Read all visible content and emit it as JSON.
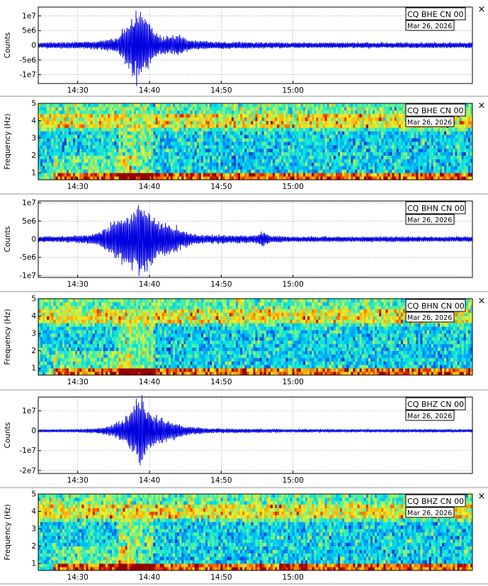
{
  "panels": [
    {
      "kind": "wave",
      "ylabel": "Counts",
      "ticks": [
        "1e7",
        "5e6",
        "0",
        "-5e6",
        "-1e7"
      ],
      "tick_values": [
        10000000,
        5000000,
        0,
        -5000000,
        -10000000
      ],
      "ylim": [
        -13000000,
        13000000
      ],
      "station": "CQ BHE CN 00",
      "date": "Mar 26, 2026"
    },
    {
      "kind": "spec",
      "ylabel": "Frequency (Hz)",
      "ticks": [
        "5",
        "4",
        "3",
        "2",
        "1"
      ],
      "tick_values": [
        5,
        4,
        3,
        2,
        1
      ],
      "ylim": [
        0.6,
        5
      ],
      "station": "CQ BHE CN 00",
      "date": "Mar 26, 2026"
    },
    {
      "kind": "wave",
      "ylabel": "Counts",
      "ticks": [
        "1e7",
        "5e6",
        "0",
        "-5e6",
        "-1e7"
      ],
      "tick_values": [
        10000000,
        5000000,
        0,
        -5000000,
        -10000000
      ],
      "ylim": [
        -10500000,
        10500000
      ],
      "station": "CQ BHN CN 00",
      "date": "Mar 26, 2026"
    },
    {
      "kind": "spec",
      "ylabel": "Frequency (Hz)",
      "ticks": [
        "5",
        "4",
        "3",
        "2",
        "1"
      ],
      "tick_values": [
        5,
        4,
        3,
        2,
        1
      ],
      "ylim": [
        0.6,
        5
      ],
      "station": "CQ BHN CN 00",
      "date": "Mar 26, 2026"
    },
    {
      "kind": "wave",
      "ylabel": "Counts",
      "ticks": [
        "1e7",
        "0",
        "-1e7",
        "-2e7"
      ],
      "tick_values": [
        10000000,
        0,
        -10000000,
        -20000000
      ],
      "ylim": [
        -21500000,
        17000000
      ],
      "station": "CQ BHZ CN 00",
      "date": "Mar 26, 2026"
    },
    {
      "kind": "spec",
      "ylabel": "Frequency (Hz)",
      "ticks": [
        "5",
        "4",
        "3",
        "2",
        "1"
      ],
      "tick_values": [
        5,
        4,
        3,
        2,
        1
      ],
      "ylim": [
        0.6,
        5
      ],
      "station": "CQ BHZ CN 00",
      "date": "Mar 26, 2026"
    }
  ],
  "close_label": "×",
  "colors": {
    "wave": "#0000e0",
    "grid": "#8a8a8a",
    "separator": "#909090"
  },
  "chart_data": [
    {
      "type": "line",
      "title": "",
      "xlabel": "",
      "ylabel": "Counts",
      "x_ticks": [
        "14:30",
        "14:40",
        "14:50",
        "15:00"
      ],
      "ylim": [
        -13000000,
        13000000
      ],
      "grid": true,
      "legend_text": [
        "CQ BHE CN 00",
        "Mar 26, 2026"
      ],
      "series": [
        {
          "values": [
            {
              "t": "14:25",
              "peak": 1000000
            },
            {
              "t": "14:35",
              "peak": 2500000
            },
            {
              "t": "14:38",
              "peak": 11000000
            },
            {
              "t": "14:40",
              "peak": 8000000
            },
            {
              "t": "14:45",
              "peak": 1500000
            },
            {
              "t": "15:00",
              "peak": 800000
            }
          ]
        }
      ]
    },
    {
      "type": "heatmap",
      "title": "",
      "xlabel": "",
      "ylabel": "Frequency (Hz)",
      "x_ticks": [
        "14:30",
        "14:40",
        "14:50",
        "15:00"
      ],
      "ylim": [
        0.6,
        5
      ],
      "legend_text": [
        "CQ BHE CN 00",
        "Mar 26, 2026"
      ]
    },
    {
      "type": "line",
      "title": "",
      "xlabel": "",
      "ylabel": "Counts",
      "x_ticks": [
        "14:30",
        "14:40",
        "14:50",
        "15:00"
      ],
      "ylim": [
        -10500000,
        10500000
      ],
      "grid": true,
      "legend_text": [
        "CQ BHN CN 00",
        "Mar 26, 2026"
      ],
      "series": [
        {
          "values": [
            {
              "t": "14:25",
              "peak": 800000
            },
            {
              "t": "14:35",
              "peak": 5000000
            },
            {
              "t": "14:39",
              "peak": 10000000
            },
            {
              "t": "14:42",
              "peak": 6000000
            },
            {
              "t": "14:46",
              "peak": 2000000
            },
            {
              "t": "14:56",
              "peak": 1500000
            },
            {
              "t": "15:00",
              "peak": 700000
            }
          ]
        }
      ]
    },
    {
      "type": "heatmap",
      "title": "",
      "xlabel": "",
      "ylabel": "Frequency (Hz)",
      "x_ticks": [
        "14:30",
        "14:40",
        "14:50",
        "15:00"
      ],
      "ylim": [
        0.6,
        5
      ],
      "legend_text": [
        "CQ BHN CN 00",
        "Mar 26, 2026"
      ]
    },
    {
      "type": "line",
      "title": "",
      "xlabel": "",
      "ylabel": "Counts",
      "x_ticks": [
        "14:30",
        "14:40",
        "14:50",
        "15:00"
      ],
      "ylim": [
        -21500000,
        17000000
      ],
      "grid": true,
      "legend_text": [
        "CQ BHZ CN 00",
        "Mar 26, 2026"
      ],
      "series": [
        {
          "values": [
            {
              "t": "14:25",
              "peak": 1000000
            },
            {
              "t": "14:35",
              "peak": 4000000
            },
            {
              "t": "14:39",
              "peak": 17000000
            },
            {
              "t": "14:42",
              "peak": 8000000
            },
            {
              "t": "14:45",
              "peak": 3000000
            },
            {
              "t": "15:00",
              "peak": 700000
            }
          ]
        }
      ]
    },
    {
      "type": "heatmap",
      "title": "",
      "xlabel": "",
      "ylabel": "Frequency (Hz)",
      "x_ticks": [
        "14:30",
        "14:40",
        "14:50",
        "15:00"
      ],
      "ylim": [
        0.6,
        5
      ],
      "legend_text": [
        "CQ BHZ CN 00",
        "Mar 26, 2026"
      ]
    }
  ]
}
